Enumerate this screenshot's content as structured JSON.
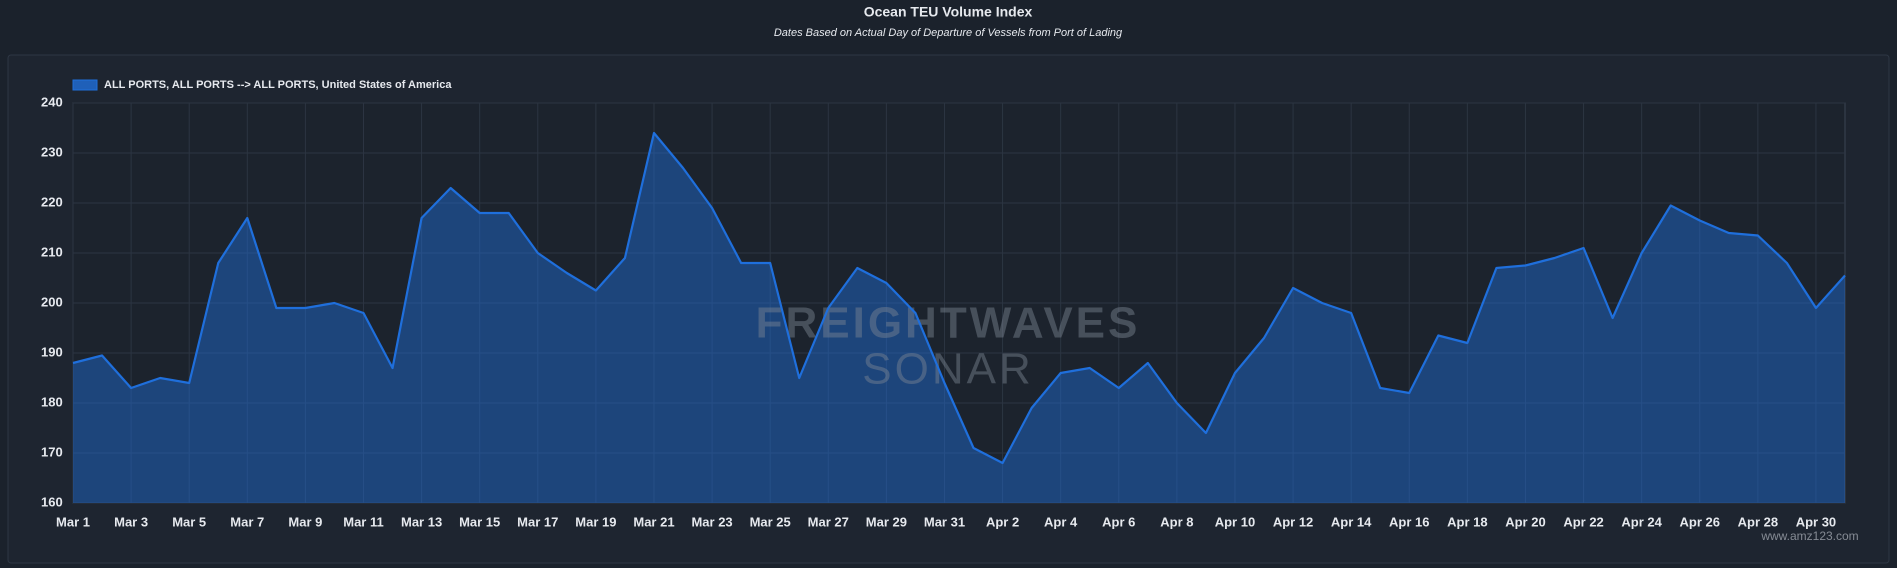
{
  "chart_data": {
    "type": "area",
    "title": "Ocean TEU Volume Index",
    "subtitle": "Dates Based on Actual Day of Departure of Vessels from Port of Lading",
    "watermark": [
      "FREIGHTWAVES",
      "SONAR"
    ],
    "site_watermark": "www.amz123.com",
    "categories": [
      "Mar 1",
      null,
      "Mar 3",
      null,
      "Mar 5",
      null,
      "Mar 7",
      null,
      "Mar 9",
      null,
      "Mar 11",
      null,
      "Mar 13",
      null,
      "Mar 15",
      null,
      "Mar 17",
      null,
      "Mar 19",
      null,
      "Mar 21",
      null,
      "Mar 23",
      null,
      "Mar 25",
      null,
      "Mar 27",
      null,
      "Mar 29",
      null,
      "Mar 31",
      null,
      "Apr 2",
      null,
      "Apr 4",
      null,
      "Apr 6",
      null,
      "Apr 8",
      null,
      "Apr 10",
      null,
      "Apr 12",
      null,
      "Apr 14",
      null,
      "Apr 16",
      null,
      "Apr 18",
      null,
      "Apr 20",
      null,
      "Apr 22",
      null,
      "Apr 24",
      null,
      "Apr 26",
      null,
      "Apr 28",
      null,
      "Apr 30",
      null
    ],
    "series": [
      {
        "name": "ALL PORTS, ALL PORTS --> ALL PORTS, United States of America",
        "color": "#1f6fdc",
        "values": [
          188,
          189.5,
          183,
          185,
          184,
          208,
          217,
          199,
          199,
          200,
          198,
          187,
          217,
          223,
          218,
          218,
          210,
          206,
          202.5,
          209,
          234,
          227,
          219,
          208,
          208,
          185,
          199,
          207,
          204,
          198,
          184,
          171,
          168,
          179,
          186,
          187,
          183,
          188,
          180,
          174,
          186,
          193,
          203,
          200,
          198,
          183,
          182,
          193.5,
          192,
          207,
          207.5,
          209,
          211,
          197,
          210,
          219.5,
          216.5,
          214,
          213.5,
          208,
          199,
          205.5
        ]
      }
    ],
    "ylim": [
      160,
      240
    ],
    "yticks": [
      160,
      170,
      180,
      190,
      200,
      210,
      220,
      230,
      240
    ],
    "grid": true,
    "legend": "top-left"
  }
}
